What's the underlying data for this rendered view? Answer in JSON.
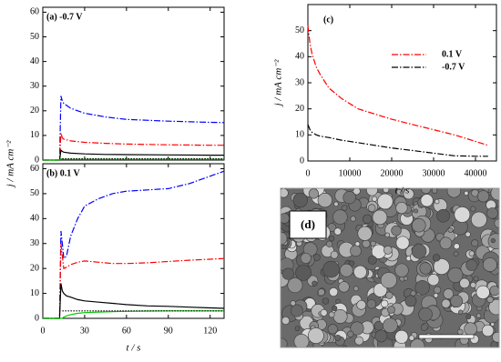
{
  "chart_data": [
    {
      "type": "line",
      "panel_label": "(a) -0.7 V",
      "y_label": "j / mA cm⁻²",
      "x": [
        0,
        12,
        13,
        14,
        15,
        20,
        30,
        45,
        60,
        90,
        120,
        130
      ],
      "series": [
        {
          "color": "#0000ff",
          "style": "dashdot",
          "values": [
            0,
            0,
            26,
            24,
            23,
            21,
            19,
            17.5,
            16.5,
            15.8,
            15.3,
            15.2
          ]
        },
        {
          "color": "#ff0000",
          "style": "dashdot",
          "values": [
            0,
            0,
            11,
            9,
            8.5,
            7.8,
            7.2,
            6.8,
            6.5,
            6.2,
            6,
            6
          ]
        },
        {
          "color": "#000000",
          "style": "solid",
          "values": [
            0,
            0,
            4,
            3.5,
            3.2,
            2.8,
            2.5,
            2.3,
            2.2,
            2.1,
            2,
            2
          ]
        },
        {
          "color": "#00cc00",
          "style": "solid",
          "values": [
            0,
            0,
            0.5,
            0.3,
            0.3,
            0.3,
            0.3,
            0.3,
            0.3,
            0.3,
            0.3,
            0.3
          ]
        },
        {
          "color": "#000000",
          "style": "dotted",
          "values": [
            null,
            null,
            null,
            0.5,
            0.5,
            0.5,
            0.5,
            0.5,
            0.5,
            0.5,
            0.5,
            0.5
          ]
        }
      ],
      "xlim": [
        0,
        130
      ],
      "xticks": [
        0,
        30,
        60,
        90,
        120
      ],
      "ylim": [
        0,
        62
      ],
      "yticks": [
        0,
        10,
        20,
        30,
        40,
        50,
        60
      ]
    },
    {
      "type": "line",
      "panel_label": "(b) 0.1 V",
      "x_label": "t / s",
      "x": [
        0,
        12,
        13,
        14,
        15,
        17,
        20,
        25,
        30,
        40,
        50,
        60,
        75,
        90,
        105,
        120,
        130
      ],
      "series": [
        {
          "color": "#0000ff",
          "style": "dashdot",
          "values": [
            0,
            0,
            35,
            30,
            24,
            25,
            33,
            40,
            45,
            48,
            50,
            51,
            51.5,
            52,
            54,
            57,
            59
          ]
        },
        {
          "color": "#ff0000",
          "style": "dashdot",
          "values": [
            0,
            0,
            30,
            25,
            20,
            20.5,
            21.5,
            22.5,
            23,
            22.5,
            22,
            22,
            22.3,
            22.8,
            23.3,
            23.7,
            24
          ]
        },
        {
          "color": "#000000",
          "style": "solid",
          "values": [
            0,
            0,
            14,
            11,
            10,
            9,
            8.5,
            7.5,
            7,
            6.5,
            6,
            5.5,
            5,
            4.8,
            4.5,
            4.2,
            4
          ]
        },
        {
          "color": "#00cc00",
          "style": "solid",
          "values": [
            0,
            0,
            0,
            0,
            0.5,
            1,
            1.5,
            2,
            2.3,
            2.5,
            2.7,
            2.8,
            2.9,
            3,
            3,
            3,
            3
          ]
        },
        {
          "color": "#000000",
          "style": "dotted",
          "values": [
            null,
            null,
            null,
            3,
            3,
            3,
            3,
            3,
            3,
            3,
            3,
            3,
            3,
            3,
            3,
            3,
            3
          ]
        }
      ],
      "xlim": [
        0,
        130
      ],
      "xticks": [
        0,
        30,
        60,
        90,
        120
      ],
      "ylim": [
        0,
        62
      ],
      "yticks": [
        0,
        10,
        20,
        30,
        40,
        50,
        60
      ]
    },
    {
      "type": "line",
      "panel_label": "(c)",
      "y_label": "j / mA cm⁻²",
      "x_label": "t / s",
      "legend": "upper right",
      "x": [
        0,
        500,
        1000,
        2000,
        3000,
        5000,
        8000,
        12000,
        16000,
        20000,
        25000,
        30000,
        35000,
        40000,
        43000
      ],
      "series": [
        {
          "name": "0.1 V",
          "color": "#ff0000",
          "style": "dashdot",
          "values": [
            52,
            45,
            41,
            36,
            33,
            28,
            24,
            20,
            18,
            16,
            14,
            12,
            10,
            7.5,
            6
          ]
        },
        {
          "name": "-0.7 V",
          "color": "#000000",
          "style": "dashdot",
          "values": [
            14,
            12,
            11,
            10,
            9.5,
            9,
            8,
            7,
            6,
            5,
            4,
            3,
            2,
            1.8,
            1.8
          ]
        }
      ],
      "xlim": [
        0,
        45000
      ],
      "xticks": [
        0,
        10000,
        20000,
        30000,
        40000
      ],
      "ylim": [
        0,
        60
      ],
      "yticks": [
        0,
        10,
        20,
        30,
        40,
        50
      ]
    }
  ],
  "image_panel": {
    "label": "(d)"
  }
}
